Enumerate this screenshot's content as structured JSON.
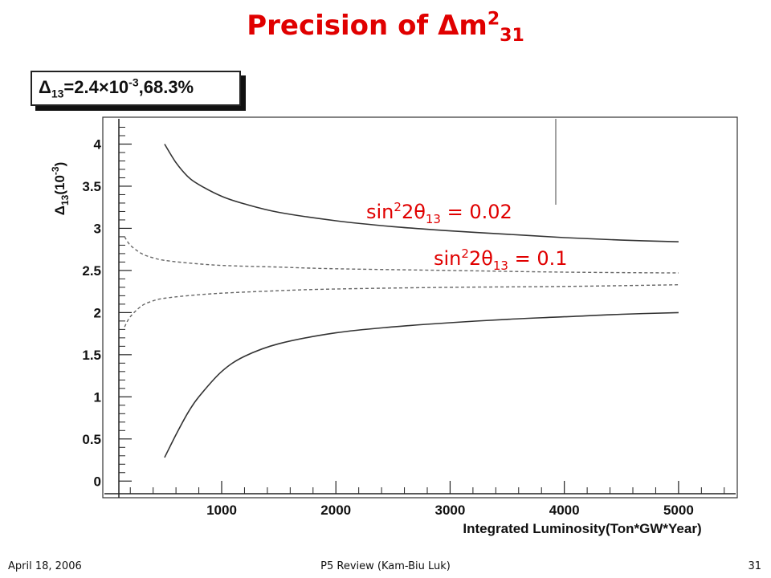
{
  "slide": {
    "title_prefix": "Precision of ",
    "title_delta": "Δ",
    "title_m": "m",
    "title_sup": "2",
    "title_sub": "31"
  },
  "legend": {
    "delta": "Δ",
    "sub": "13",
    "eq": "=2.4",
    "times": "×",
    "ten": "10",
    "exp": "-3",
    "rest": ",68.3%"
  },
  "labels": {
    "curve_002": {
      "sin": "sin",
      "sup": "2",
      "two_theta": "2θ",
      "sub": "13",
      "value": " = 0.02"
    },
    "curve_01": {
      "sin": "sin",
      "sup": "2",
      "two_theta": "2θ",
      "sub": "13",
      "value": " = 0.1"
    }
  },
  "footer": {
    "left": "April 18, 2006",
    "center": "P5 Review (Kam-Biu Luk)",
    "right": "31"
  },
  "chart_data": {
    "type": "line",
    "xlabel": "Integrated Luminosity(Ton*GW*Year)",
    "ylabel": "Δ13(10-3)",
    "ylabel_main": "Δ",
    "ylabel_sub": "13",
    "ylabel_unit": "(10",
    "ylabel_exp": "-3",
    "ylabel_close": ")",
    "xlim": [
      100,
      5500
    ],
    "ylim": [
      -0.15,
      4.3
    ],
    "x_ticks": [
      1000,
      2000,
      3000,
      4000,
      5000
    ],
    "y_ticks": [
      0,
      0.5,
      1,
      1.5,
      2,
      2.5,
      3,
      3.5,
      4
    ],
    "y_tick_labels": [
      "0",
      "0.5",
      "1",
      "1.5",
      "2",
      "2.5",
      "3",
      "3.5",
      "4"
    ],
    "grid": false,
    "series": [
      {
        "name": "sin²2θ13 = 0.02",
        "style": "solid",
        "x": [
          500,
          600,
          700,
          800,
          1000,
          1200,
          1500,
          2000,
          2500,
          3000,
          3500,
          4000,
          4500,
          5000
        ],
        "y": [
          4.0,
          3.78,
          3.62,
          3.52,
          3.38,
          3.29,
          3.19,
          3.09,
          3.02,
          2.97,
          2.93,
          2.89,
          2.86,
          2.84
        ]
      },
      {
        "name": "sin²2θ13 = 0.1",
        "style": "dashed",
        "x": [
          150,
          200,
          300,
          400,
          500,
          700,
          1000,
          1500,
          2000,
          3000,
          4000,
          5000
        ],
        "y": [
          2.9,
          2.8,
          2.7,
          2.65,
          2.62,
          2.59,
          2.56,
          2.54,
          2.52,
          2.5,
          2.48,
          2.47
        ]
      },
      {
        "name": "sin²2θ13 = 0.1",
        "style": "dashed",
        "x": [
          150,
          200,
          300,
          400,
          500,
          700,
          1000,
          1500,
          2000,
          3000,
          4000,
          5000
        ],
        "y": [
          1.83,
          1.95,
          2.08,
          2.14,
          2.17,
          2.2,
          2.23,
          2.26,
          2.28,
          2.3,
          2.31,
          2.33
        ]
      },
      {
        "name": "sin²2θ13 = 0.02",
        "style": "solid",
        "x": [
          500,
          600,
          700,
          800,
          1000,
          1200,
          1500,
          2000,
          2500,
          3000,
          3500,
          4000,
          4500,
          5000
        ],
        "y": [
          0.28,
          0.55,
          0.8,
          1.0,
          1.3,
          1.48,
          1.63,
          1.76,
          1.83,
          1.88,
          1.92,
          1.95,
          1.98,
          2.0
        ]
      }
    ]
  }
}
